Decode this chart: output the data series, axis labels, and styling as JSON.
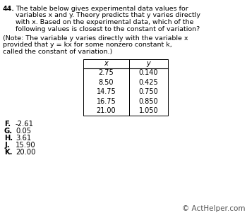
{
  "bg_color": "#ffffff",
  "text_color": "#000000",
  "q_num": "44.",
  "lines": [
    "The table below gives experimental data values for",
    "variables x and y. Theory predicts that y varies directly",
    "with x. Based on the experimental data, which of the",
    "following values is closest to the constant of variation?"
  ],
  "note_lines": [
    "(Note: The variable y varies directly with the variable x",
    "provided that y = kx for some nonzero constant k,",
    "called the constant of variation.)"
  ],
  "italic_words_line0_note": [],
  "table_header": [
    "x",
    "y"
  ],
  "table_data": [
    [
      "2.75",
      "0.140"
    ],
    [
      "8.50",
      "0.425"
    ],
    [
      "14.75",
      "0.750"
    ],
    [
      "16.75",
      "0.850"
    ],
    [
      "21.00",
      "1.050"
    ]
  ],
  "choices": [
    [
      "F.",
      "-2.61"
    ],
    [
      "G.",
      "0.05"
    ],
    [
      "H.",
      "3.61"
    ],
    [
      "J.",
      "15.90"
    ],
    [
      "K.",
      "20.00"
    ]
  ],
  "copyright": "© ActHelper.com"
}
